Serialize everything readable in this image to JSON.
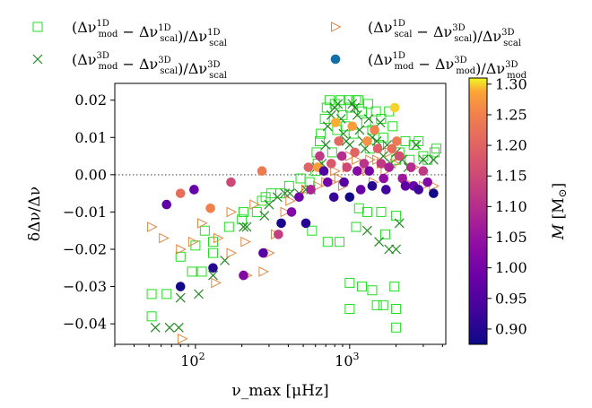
{
  "chart_data": {
    "type": "scatter",
    "xlabel": "ν_max [μHz]",
    "ylabel": "δΔν/Δν",
    "xscale": "log",
    "xlim": [
      30,
      4200
    ],
    "ylim": [
      -0.0455,
      0.0245
    ],
    "x_ticks": [
      {
        "value": 100,
        "base": "10",
        "exp": "2"
      },
      {
        "value": 1000,
        "base": "10",
        "exp": "3"
      }
    ],
    "y_ticks": [
      {
        "value": 0.02,
        "label": "0.02"
      },
      {
        "value": 0.01,
        "label": "0.01"
      },
      {
        "value": 0.0,
        "label": "0.00"
      },
      {
        "value": -0.01,
        "label": "−0.01"
      },
      {
        "value": -0.02,
        "label": "−0.02"
      },
      {
        "value": -0.03,
        "label": "−0.03"
      },
      {
        "value": -0.04,
        "label": "−0.04"
      }
    ],
    "reference_line": {
      "y": 0.0,
      "style": "dotted",
      "color": "#666666"
    },
    "grid": false,
    "legend_placement": "top, outside plot, two columns",
    "colorbar": {
      "label_main": "M",
      "label_unit": "[M",
      "label_sun": "⊙",
      "label_close": "]",
      "min": 0.875,
      "max": 1.31,
      "ticks": [
        {
          "value": 0.9,
          "label": "0.90"
        },
        {
          "value": 0.95,
          "label": "0.95"
        },
        {
          "value": 1.0,
          "label": "1.00"
        },
        {
          "value": 1.05,
          "label": "1.05"
        },
        {
          "value": 1.1,
          "label": "1.10"
        },
        {
          "value": 1.15,
          "label": "1.15"
        },
        {
          "value": 1.2,
          "label": "1.20"
        },
        {
          "value": 1.25,
          "label": "1.25"
        },
        {
          "value": 1.3,
          "label": "1.30"
        }
      ],
      "colormap": "plasma"
    },
    "series": [
      {
        "name": "(Δν^1D_mod − Δν^1D_scal)/Δν^1D_scal",
        "marker": "open-square",
        "color": "#22dd22",
        "points": [
          [
            52,
            -0.032
          ],
          [
            52,
            -0.038
          ],
          [
            65,
            -0.032
          ],
          [
            80,
            -0.022
          ],
          [
            100,
            -0.019
          ],
          [
            115,
            -0.015
          ],
          [
            95,
            -0.026
          ],
          [
            110,
            -0.026
          ],
          [
            130,
            -0.021
          ],
          [
            130,
            -0.018
          ],
          [
            165,
            -0.014
          ],
          [
            200,
            -0.012
          ],
          [
            205,
            -0.01
          ],
          [
            250,
            -0.01
          ],
          [
            270,
            -0.007
          ],
          [
            285,
            -0.006
          ],
          [
            310,
            -0.005
          ],
          [
            355,
            -0.005
          ],
          [
            405,
            -0.003
          ],
          [
            480,
            -0.001
          ],
          [
            550,
            -0.002
          ],
          [
            600,
            0.001
          ],
          [
            620,
            0.003
          ],
          [
            610,
            0.006
          ],
          [
            640,
            0.009
          ],
          [
            650,
            0.011
          ],
          [
            690,
            0.015
          ],
          [
            710,
            0.018
          ],
          [
            740,
            0.02
          ],
          [
            770,
            0.006
          ],
          [
            800,
            0.019
          ],
          [
            830,
            0.012
          ],
          [
            870,
            0.02
          ],
          [
            900,
            0.016
          ],
          [
            940,
            0.013
          ],
          [
            980,
            0.02
          ],
          [
            1010,
            0.018
          ],
          [
            1060,
            0.011
          ],
          [
            1100,
            0.02
          ],
          [
            1140,
            0.02
          ],
          [
            1200,
            0.017
          ],
          [
            1280,
            0.014
          ],
          [
            1320,
            0.019
          ],
          [
            1350,
            0.007
          ],
          [
            1400,
            0.012
          ],
          [
            1480,
            0.017
          ],
          [
            1550,
            0.008
          ],
          [
            1600,
            0.015
          ],
          [
            1650,
            0.01
          ],
          [
            1800,
            0.017
          ],
          [
            1900,
            0.013
          ],
          [
            2000,
            0.004
          ],
          [
            2100,
            0.006
          ],
          [
            2300,
            0.009
          ],
          [
            2450,
            0.004
          ],
          [
            2600,
            0.008
          ],
          [
            2800,
            0.009
          ],
          [
            3000,
            0.005
          ],
          [
            3200,
            0.004
          ],
          [
            3550,
            0.006
          ],
          [
            3650,
            0.007
          ],
          [
            570,
            -0.015
          ],
          [
            720,
            -0.018
          ],
          [
            860,
            -0.018
          ],
          [
            1100,
            -0.014
          ],
          [
            1150,
            -0.009
          ],
          [
            1300,
            -0.01
          ],
          [
            1600,
            -0.01
          ],
          [
            2000,
            -0.011
          ],
          [
            1700,
            -0.016
          ],
          [
            1000,
            -0.036
          ],
          [
            1000,
            -0.029
          ],
          [
            1200,
            -0.03
          ],
          [
            1400,
            -0.031
          ],
          [
            1500,
            -0.035
          ],
          [
            1650,
            -0.035
          ],
          [
            1950,
            -0.03
          ],
          [
            2000,
            -0.036
          ],
          [
            2000,
            -0.041
          ]
        ]
      },
      {
        "name": "(Δν^3D_mod − Δν^3D_scal)/Δν^3D_scal",
        "marker": "x-cross",
        "color": "#228822",
        "points": [
          [
            55,
            -0.041
          ],
          [
            68,
            -0.041
          ],
          [
            78,
            -0.041
          ],
          [
            80,
            -0.033
          ],
          [
            105,
            -0.032
          ],
          [
            130,
            -0.027
          ],
          [
            155,
            -0.023
          ],
          [
            205,
            -0.014
          ],
          [
            215,
            -0.014
          ],
          [
            280,
            -0.011
          ],
          [
            300,
            -0.008
          ],
          [
            340,
            -0.006
          ],
          [
            380,
            -0.005
          ],
          [
            410,
            -0.005
          ],
          [
            470,
            -0.005
          ],
          [
            520,
            -0.004
          ],
          [
            560,
            -0.004
          ],
          [
            610,
            0.002
          ],
          [
            660,
            0.003
          ],
          [
            700,
            0.008
          ],
          [
            720,
            0.013
          ],
          [
            760,
            0.016
          ],
          [
            800,
            0.018
          ],
          [
            840,
            0.019
          ],
          [
            880,
            0.015
          ],
          [
            910,
            0.011
          ],
          [
            950,
            0.009
          ],
          [
            1000,
            0.008
          ],
          [
            1040,
            0.019
          ],
          [
            1080,
            0.018
          ],
          [
            1120,
            0.016
          ],
          [
            1160,
            0.012
          ],
          [
            1220,
            0.009
          ],
          [
            1260,
            0.007
          ],
          [
            1330,
            0.015
          ],
          [
            1400,
            0.01
          ],
          [
            1500,
            0.009
          ],
          [
            1580,
            0.014
          ],
          [
            1650,
            0.005
          ],
          [
            1750,
            0.008
          ],
          [
            1850,
            0.003
          ],
          [
            2000,
            0.006
          ],
          [
            2200,
            0.004
          ],
          [
            2400,
            0.002
          ],
          [
            2700,
            0.008
          ],
          [
            3000,
            0.004
          ],
          [
            3500,
            0.004
          ],
          [
            1300,
            -0.015
          ],
          [
            1550,
            -0.018
          ],
          [
            1800,
            -0.02
          ],
          [
            2000,
            -0.02
          ],
          [
            2100,
            -0.013
          ]
        ]
      },
      {
        "name": "(Δν^1D_scal − Δν^3D_scal)/Δν^3D_scal",
        "marker": "open-triangle-right",
        "color": "#dd8844",
        "points": [
          [
            52,
            -0.014
          ],
          [
            62,
            -0.017
          ],
          [
            80,
            -0.02
          ],
          [
            82,
            -0.044
          ],
          [
            96,
            -0.018
          ],
          [
            110,
            -0.013
          ],
          [
            135,
            -0.029
          ],
          [
            140,
            -0.017
          ],
          [
            170,
            -0.01
          ],
          [
            170,
            -0.021
          ],
          [
            210,
            -0.018
          ],
          [
            215,
            -0.027
          ],
          [
            240,
            -0.008
          ],
          [
            275,
            -0.026
          ],
          [
            300,
            -0.021
          ],
          [
            330,
            -0.016
          ],
          [
            380,
            -0.01
          ],
          [
            410,
            -0.007
          ],
          [
            520,
            -0.004
          ],
          [
            620,
            -0.003
          ],
          [
            700,
            -0.002
          ],
          [
            760,
            -0.002
          ],
          [
            800,
            0.001
          ],
          [
            850,
            -0.001
          ],
          [
            900,
            -0.003
          ],
          [
            960,
            0.002
          ],
          [
            1000,
            0.005
          ],
          [
            1100,
            0.004
          ],
          [
            1200,
            0.001
          ],
          [
            1300,
            0.001
          ],
          [
            1350,
            0.004
          ],
          [
            1420,
            -0.002
          ],
          [
            1500,
            0.004
          ],
          [
            1600,
            0.003
          ],
          [
            1700,
            0.001
          ],
          [
            1800,
            0.006
          ],
          [
            1950,
            0.003
          ],
          [
            2100,
            0.005
          ],
          [
            2300,
            -0.002
          ],
          [
            2600,
            0.002
          ],
          [
            3000,
            -0.003
          ],
          [
            3500,
            -0.003
          ]
        ]
      },
      {
        "name": "(Δν^1D_mod − Δν^3D_mod)/Δν^3D_mod",
        "marker": "filled-circle",
        "color": "#1170aa",
        "color_by": "M [M⊙]",
        "points": [
          [
            65,
            -0.008,
            0.97
          ],
          [
            80,
            -0.005,
            1.22
          ],
          [
            80,
            -0.03,
            0.88
          ],
          [
            98,
            -0.004,
            0.98
          ],
          [
            125,
            -0.009,
            1.25
          ],
          [
            130,
            -0.025,
            0.9
          ],
          [
            170,
            -0.002,
            1.15
          ],
          [
            205,
            -0.027,
            1.02
          ],
          [
            270,
            0.001,
            1.24
          ],
          [
            275,
            -0.021,
            0.96
          ],
          [
            345,
            -0.016,
            1.13
          ],
          [
            360,
            -0.013,
            0.89
          ],
          [
            420,
            -0.01,
            1.02
          ],
          [
            470,
            -0.006,
            0.99
          ],
          [
            520,
            -0.013,
            0.9
          ],
          [
            540,
            0.002,
            1.2
          ],
          [
            560,
            -0.004,
            1.08
          ],
          [
            620,
            0.002,
            1.28
          ],
          [
            640,
            0.005,
            1.12
          ],
          [
            680,
            0.001,
            0.95
          ],
          [
            720,
            -0.002,
            1.0
          ],
          [
            760,
            0.003,
            1.18
          ],
          [
            790,
            -0.006,
            0.92
          ],
          [
            810,
            0.014,
            1.29
          ],
          [
            850,
            0.009,
            1.21
          ],
          [
            890,
            0.005,
            1.1
          ],
          [
            920,
            -0.002,
            0.96
          ],
          [
            960,
            0.002,
            1.15
          ],
          [
            1000,
            -0.006,
            0.88
          ],
          [
            1040,
            0.013,
            1.28
          ],
          [
            1080,
            0.006,
            1.2
          ],
          [
            1120,
            0.001,
            1.03
          ],
          [
            1180,
            -0.004,
            0.98
          ],
          [
            1240,
            0.003,
            1.11
          ],
          [
            1300,
            0.009,
            1.27
          ],
          [
            1340,
            0.001,
            1.0
          ],
          [
            1400,
            -0.003,
            0.9
          ],
          [
            1450,
            0.012,
            1.25
          ],
          [
            1520,
            0.007,
            1.19
          ],
          [
            1600,
            0.003,
            1.12
          ],
          [
            1660,
            -0.001,
            1.04
          ],
          [
            1720,
            -0.004,
            0.93
          ],
          [
            1800,
            0.002,
            1.08
          ],
          [
            1880,
            0.007,
            1.22
          ],
          [
            1960,
            0.018,
            1.3
          ],
          [
            2020,
            0.009,
            1.24
          ],
          [
            2100,
            0.005,
            1.16
          ],
          [
            2200,
            -0.001,
            1.06
          ],
          [
            2300,
            -0.003,
            0.97
          ],
          [
            2500,
            0.002,
            1.1
          ],
          [
            2600,
            -0.003,
            0.98
          ],
          [
            2800,
            -0.004,
            0.93
          ],
          [
            3000,
            0.001,
            1.12
          ],
          [
            3200,
            -0.002,
            1.02
          ],
          [
            3500,
            -0.005,
            0.88
          ]
        ]
      }
    ]
  }
}
